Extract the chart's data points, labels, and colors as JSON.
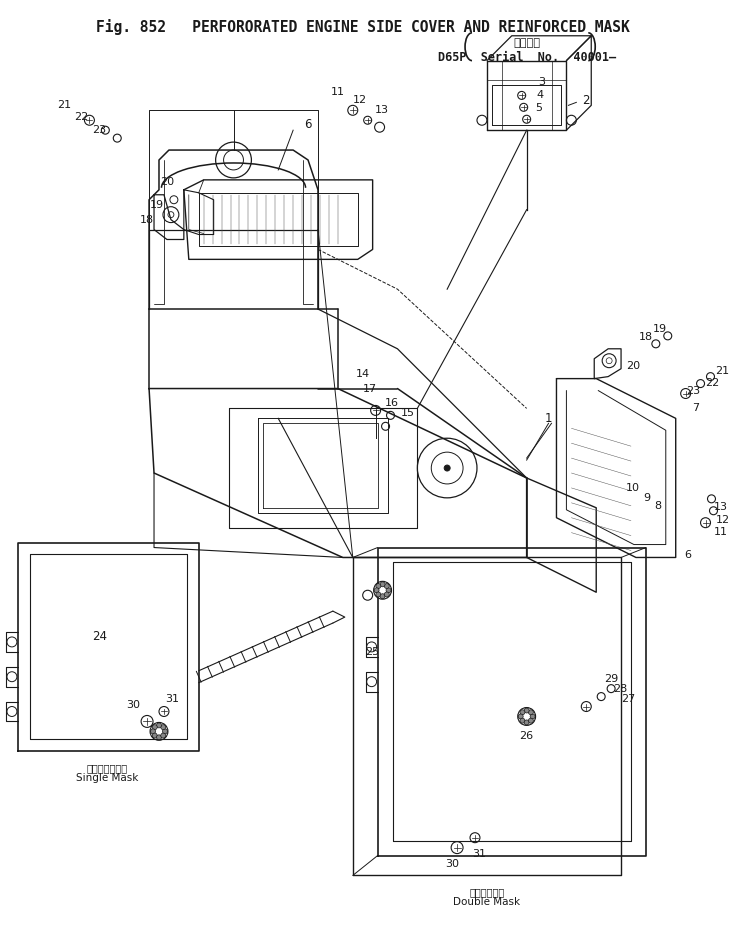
{
  "title_line1": "Fig. 852   PERFORORATED ENGINE SIDE COVER AND REINFORCED MASK",
  "title_line2_jp": "適用号機",
  "title_line2": "D65P  Serial  No.  40001–",
  "bg_color": "#ffffff",
  "line_color": "#1a1a1a",
  "caption_single_jp": "シングルマスク",
  "caption_single_en": "Single Mask",
  "caption_double_jp": "ダブルマスク",
  "caption_double_en": "Double Mask"
}
